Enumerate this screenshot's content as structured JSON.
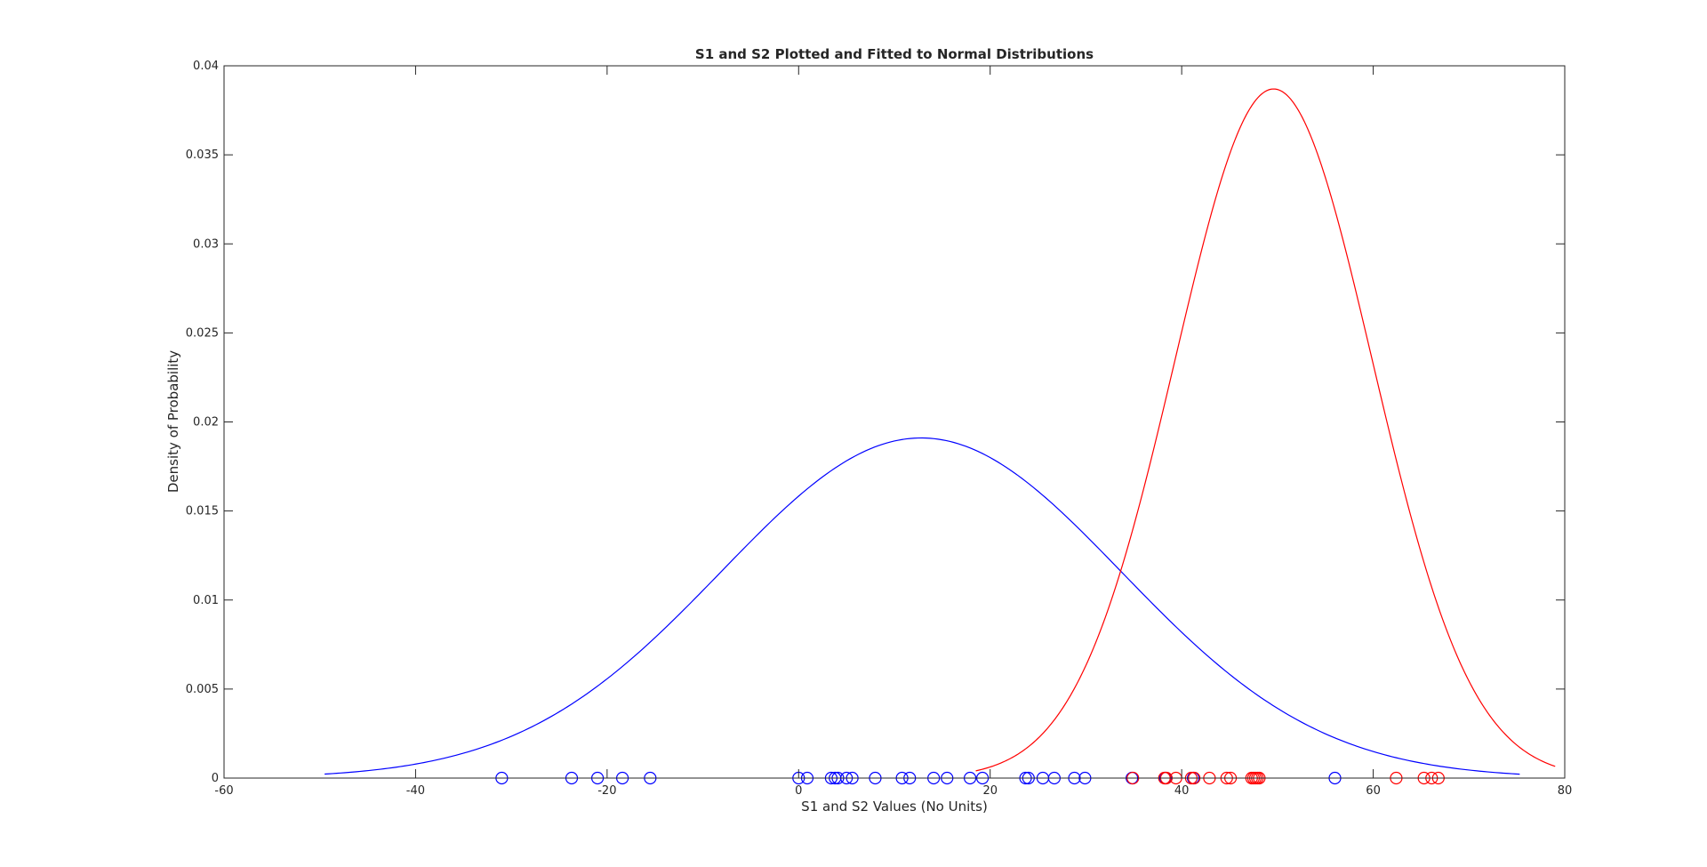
{
  "chart_data": {
    "type": "line",
    "title": "S1 and S2 Plotted and Fitted to Normal Distributions",
    "xlabel": "S1 and S2 Values (No Units)",
    "ylabel": "Density of Probability",
    "xlim": [
      -60,
      80
    ],
    "ylim": [
      0,
      0.04
    ],
    "x_ticks": [
      -60,
      -40,
      -20,
      0,
      20,
      40,
      60,
      80
    ],
    "x_tick_labels": [
      "-60",
      "-40",
      "-20",
      "0",
      "20",
      "40",
      "60",
      "80"
    ],
    "y_ticks": [
      0,
      0.005,
      0.01,
      0.015,
      0.02,
      0.025,
      0.03,
      0.035,
      0.04
    ],
    "y_tick_labels": [
      "0",
      "0.005",
      "0.01",
      "0.015",
      "0.02",
      "0.025",
      "0.03",
      "0.035",
      "0.04"
    ],
    "grid": false,
    "legend": "none",
    "series": [
      {
        "kind": "normal-fit-curve",
        "color": "#0000ff",
        "mean": 12.8,
        "std": 20.9,
        "peak": 0.0191,
        "x_range": [
          -49.5,
          75.3
        ]
      },
      {
        "kind": "normal-fit-curve",
        "color": "#ff0000",
        "mean": 49.6,
        "std": 10.3,
        "peak": 0.0387,
        "x_range": [
          18.5,
          79
        ]
      },
      {
        "kind": "scatter-markers",
        "marker": "circle",
        "color": "#0000ff",
        "y": 0,
        "x": [
          -31,
          -23.7,
          -21,
          -18.4,
          -15.5,
          0,
          0.9,
          3.4,
          3.8,
          4.1,
          5,
          5.6,
          8,
          10.8,
          11.6,
          14.1,
          15.5,
          17.9,
          19.2,
          23.7,
          24,
          25.5,
          26.7,
          28.8,
          29.9,
          34.8,
          38.3,
          41.2,
          56
        ]
      },
      {
        "kind": "scatter-markers",
        "marker": "circle",
        "color": "#ff0000",
        "y": 0,
        "x": [
          34.9,
          38.2,
          38.4,
          39.4,
          41,
          41.3,
          42.9,
          44.7,
          45.1,
          47.3,
          47.5,
          47.7,
          47.9,
          48.1,
          62.4,
          65.3,
          66.1,
          66.8
        ]
      }
    ]
  }
}
